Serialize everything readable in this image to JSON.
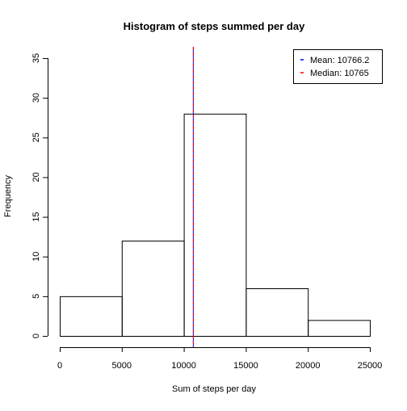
{
  "chart_data": {
    "type": "histogram",
    "title": "Histogram of steps summed per day",
    "xlabel": "Sum of steps per day",
    "ylabel": "Frequency",
    "bins": [
      {
        "from": 0,
        "to": 5000,
        "count": 5
      },
      {
        "from": 5000,
        "to": 10000,
        "count": 12
      },
      {
        "from": 10000,
        "to": 15000,
        "count": 28
      },
      {
        "from": 15000,
        "to": 20000,
        "count": 6
      },
      {
        "from": 20000,
        "to": 25000,
        "count": 2
      }
    ],
    "xlim": [
      0,
      25000
    ],
    "ylim": [
      0,
      35
    ],
    "xticks": [
      0,
      5000,
      10000,
      15000,
      20000,
      25000
    ],
    "yticks": [
      0,
      5,
      10,
      15,
      20,
      25,
      30,
      35
    ],
    "vlines": [
      {
        "name": "Mean",
        "value": 10766.2,
        "color": "#0000ff",
        "style": "solid"
      },
      {
        "name": "Median",
        "value": 10765,
        "color": "#ff0000",
        "style": "dashed"
      }
    ],
    "legend": {
      "position": "top-right",
      "entries": [
        {
          "label": "Mean:  10766.2",
          "color": "#0000ff"
        },
        {
          "label": "Median: 10765",
          "color": "#ff0000"
        }
      ]
    },
    "grid": false
  }
}
